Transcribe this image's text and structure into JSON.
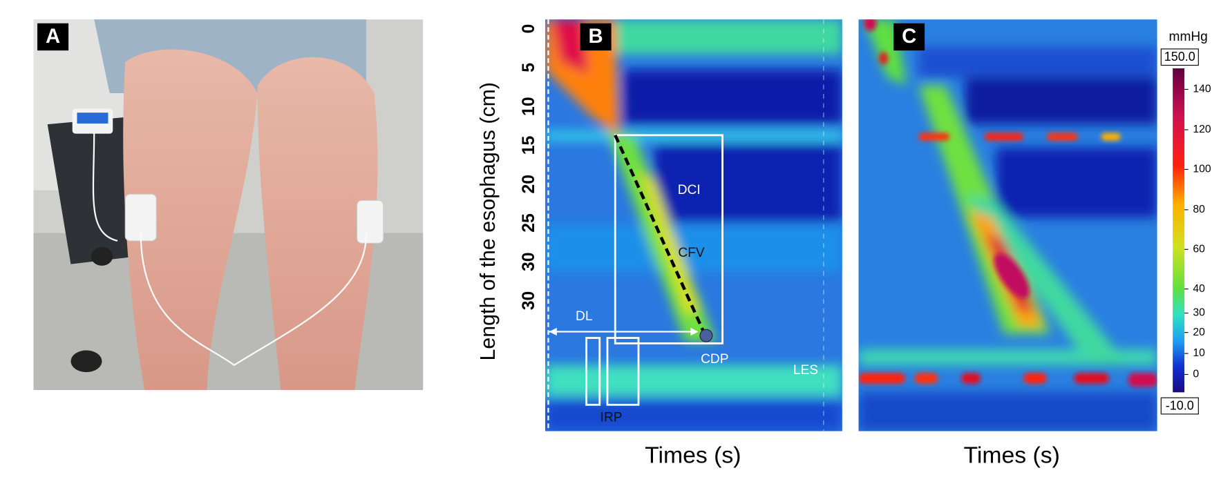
{
  "panels": {
    "a": {
      "label": "A"
    },
    "b": {
      "label": "B"
    },
    "c": {
      "label": "C"
    }
  },
  "y_axis": {
    "title": "Length of the esophagus (cm)",
    "ticks": [
      "0",
      "5",
      "10",
      "15",
      "20",
      "25",
      "30",
      "30"
    ]
  },
  "x_axis": {
    "b_title": "Times (s)",
    "c_title": "Times (s)"
  },
  "annotations": {
    "dci": "DCI",
    "cfv": "CFV",
    "dl": "DL",
    "cdp": "CDP",
    "les": "LES",
    "irp": "IRP"
  },
  "colorbar": {
    "unit": "mmHg",
    "max": "150.0",
    "min": "-10.0",
    "ticks": [
      "140",
      "120",
      "100",
      "80",
      "60",
      "40",
      "30",
      "20",
      "10",
      "0"
    ]
  }
}
